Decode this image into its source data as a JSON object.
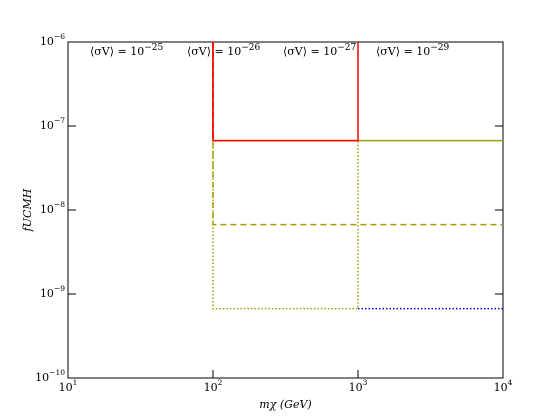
{
  "chart_data": {
    "type": "line",
    "xlabel": "mχ (GeV)",
    "ylabel": "fUCMH",
    "xscale": "log",
    "yscale": "log",
    "xlim": [
      10,
      10000
    ],
    "ylim": [
      1e-10,
      1e-06
    ],
    "xticks": [
      {
        "value": 10,
        "label": "10",
        "sup": "1"
      },
      {
        "value": 100,
        "label": "10",
        "sup": "2"
      },
      {
        "value": 1000,
        "label": "10",
        "sup": "3"
      },
      {
        "value": 10000,
        "label": "10",
        "sup": "4"
      }
    ],
    "yticks": [
      {
        "value": 1e-10,
        "label": "10",
        "sup": "−10"
      },
      {
        "value": 1e-09,
        "label": "10",
        "sup": "−9"
      },
      {
        "value": 1e-08,
        "label": "10",
        "sup": "−8"
      },
      {
        "value": 1e-07,
        "label": "10",
        "sup": "−7"
      },
      {
        "value": 1e-06,
        "label": "10",
        "sup": "−6"
      }
    ],
    "series": [
      {
        "name": "⟨σV⟩ = 10",
        "sup": "−25",
        "color": "#000000",
        "lines": []
      },
      {
        "name": "⟨σV⟩ = 10",
        "sup": "−26",
        "color": "#0000ff",
        "lines": [
          {
            "style": "dotted",
            "x": [
              1000,
              10000
            ],
            "y": [
              6.7e-10,
              6.7e-10
            ]
          }
        ]
      },
      {
        "name": "⟨σV⟩ = 10",
        "sup": "−27",
        "color": "#a0a000",
        "lines": [
          {
            "style": "solid",
            "x": [
              100,
              100,
              10000
            ],
            "y": [
              1e-06,
              6.7e-08,
              6.7e-08
            ]
          },
          {
            "style": "dashed",
            "x": [
              100,
              100,
              10000
            ],
            "y": [
              1e-06,
              6.7e-09,
              6.7e-09
            ]
          },
          {
            "style": "dotted",
            "x": [
              100,
              100,
              1000,
              1000
            ],
            "y": [
              1e-06,
              6.7e-10,
              6.7e-10,
              6.7e-08
            ]
          }
        ]
      },
      {
        "name": "⟨σV⟩ = 10",
        "sup": "−29",
        "color": "#ff0000",
        "lines": [
          {
            "style": "solid",
            "x": [
              100,
              100,
              1000,
              1000
            ],
            "y": [
              1e-06,
              6.7e-08,
              6.7e-08,
              1e-06
            ]
          },
          {
            "style": "dashed",
            "x": [
              100,
              100
            ],
            "y": [
              1e-06,
              6.7e-08
            ]
          }
        ]
      }
    ]
  }
}
